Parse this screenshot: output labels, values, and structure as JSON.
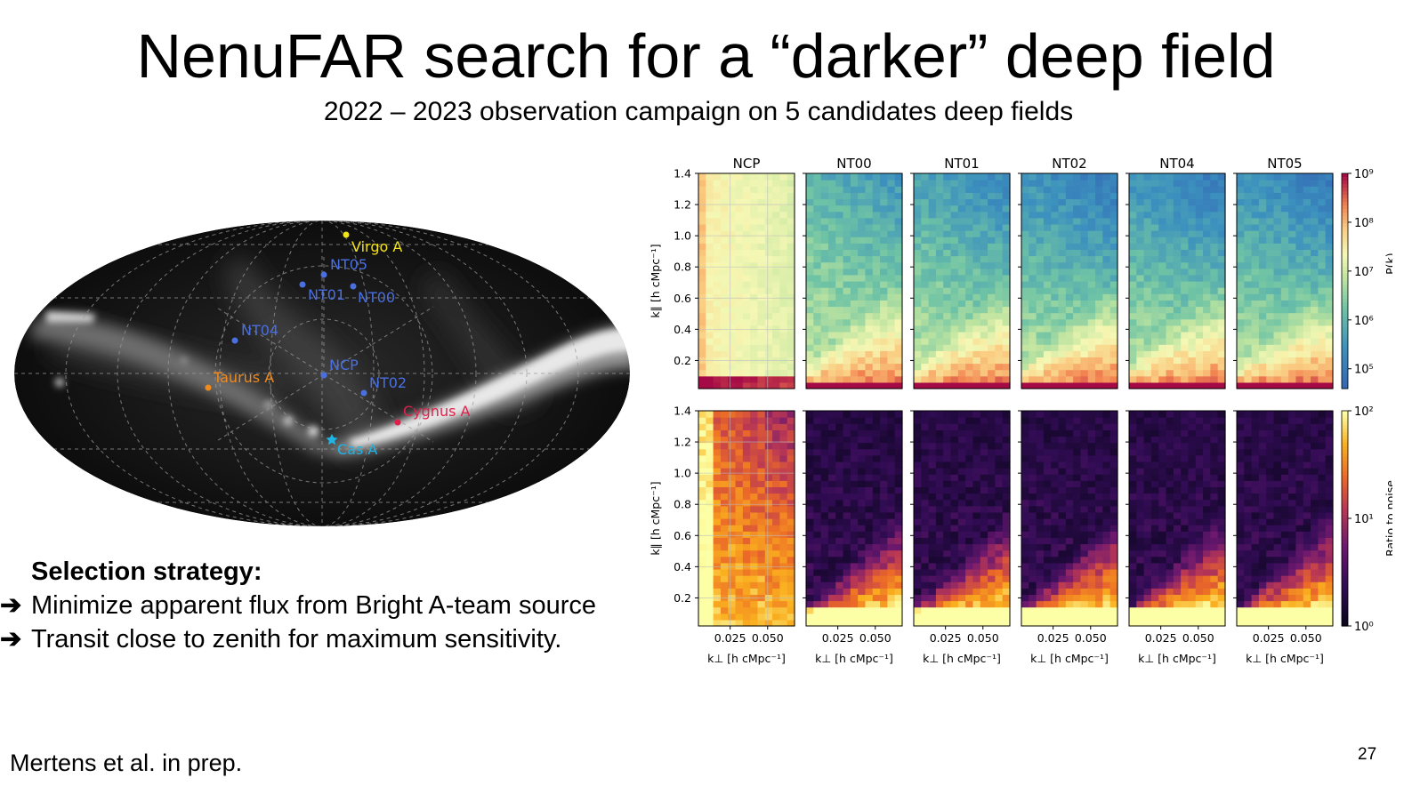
{
  "slide": {
    "title": "NenuFAR search for a “darker” deep field",
    "subtitle": "2022 – 2023 observation campaign on 5 candidates deep fields",
    "strategy_heading": "Selection strategy:",
    "bullets": [
      "Minimize apparent flux from Bright A-team source",
      "Transit close to zenith for maximum sensitivity."
    ],
    "footer": "Mertens et al. in prep.",
    "page_number": "27"
  },
  "sky_map": {
    "sources": [
      {
        "label": "Virgo A",
        "color": "#f2e31b"
      },
      {
        "label": "NT05",
        "color": "#4a6fe0"
      },
      {
        "label": "NT01",
        "color": "#4a6fe0"
      },
      {
        "label": "NT00",
        "color": "#4a6fe0"
      },
      {
        "label": "NT04",
        "color": "#4a6fe0"
      },
      {
        "label": "NCP",
        "color": "#4a6fe0"
      },
      {
        "label": "NT02",
        "color": "#4a6fe0"
      },
      {
        "label": "Taurus A",
        "color": "#f08a1c"
      },
      {
        "label": "Cygnus A",
        "color": "#e0204a"
      },
      {
        "label": "Cas A",
        "color": "#1eb4e6"
      }
    ]
  },
  "chart_data": {
    "type": "heatmap",
    "fields": [
      "NCP",
      "NT00",
      "NT01",
      "NT02",
      "NT04",
      "NT05"
    ],
    "xlabel": "k⊥ [h cMpc⁻¹]",
    "ylabel": "k∥ [h cMpc⁻¹]",
    "xticks": [
      "0.025",
      "0.050"
    ],
    "yticks": [
      "0.2",
      "0.4",
      "0.6",
      "0.8",
      "1.0",
      "1.2",
      "1.4"
    ],
    "ylim": [
      0.02,
      1.4
    ],
    "grid": true,
    "rows": [
      {
        "quantity": "P(k)",
        "colormap": "Spectral_r",
        "colorbar_ticks": [
          "10⁹",
          "10⁸",
          "10⁷",
          "10⁶",
          "10⁵"
        ],
        "colorbar_label": "P(k)"
      },
      {
        "quantity": "Ratio to noise",
        "colormap": "inferno",
        "colorbar_ticks": [
          "10²",
          "10¹",
          "10⁰"
        ],
        "colorbar_label": "Ratio to noise"
      }
    ]
  }
}
